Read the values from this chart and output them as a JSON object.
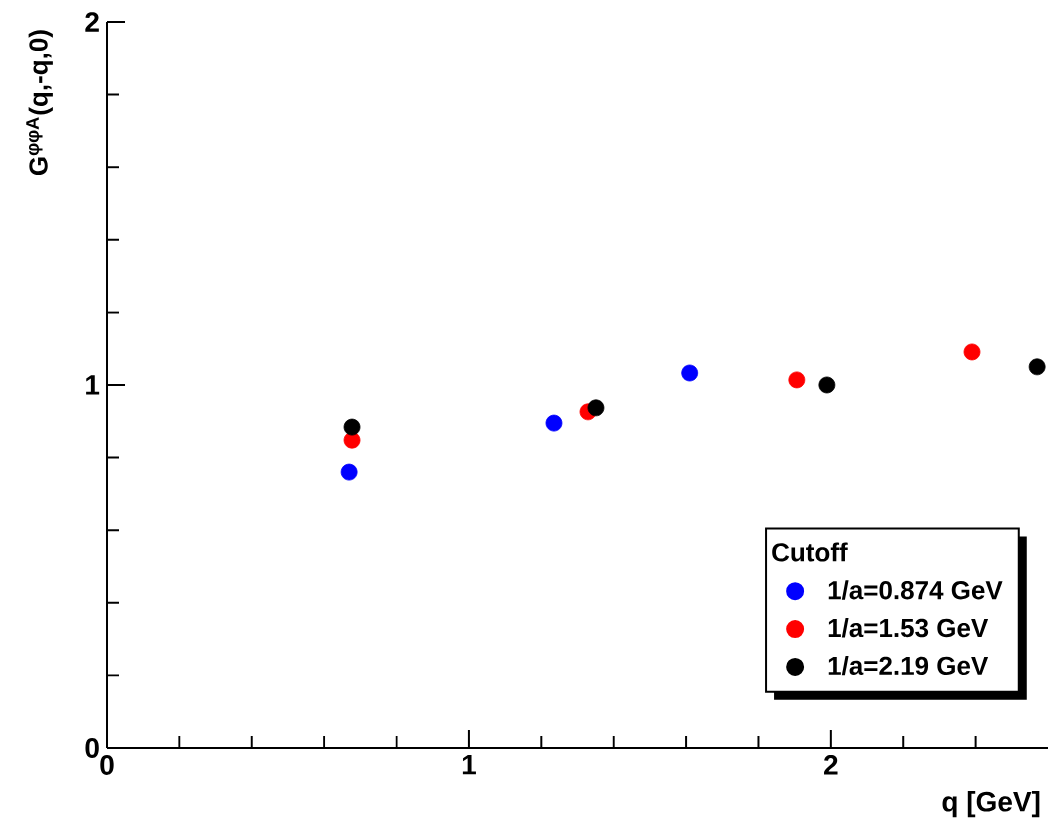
{
  "chart_data": {
    "type": "scatter",
    "xlabel": "q [GeV]",
    "ylabel": "G$^{φφA}$(q,-q,0)",
    "legend_title": "Cutoff",
    "legend": "bottom right",
    "marker": "circle",
    "xlim": [
      0,
      2.6
    ],
    "ylim": [
      0,
      2
    ],
    "xticks": [
      0,
      {
        "value": 0.2,
        "label": null
      },
      {
        "value": 0.4,
        "label": null
      },
      {
        "value": 0.6,
        "label": null
      },
      {
        "value": 0.8,
        "label": null
      },
      1,
      {
        "value": 1.2,
        "label": null
      },
      {
        "value": 1.4,
        "label": null
      },
      {
        "value": 1.6,
        "label": null
      },
      {
        "value": 1.8,
        "label": null
      },
      2,
      {
        "value": 2.2,
        "label": null
      },
      {
        "value": 2.4,
        "label": null
      }
    ],
    "yticks": [
      0,
      {
        "value": 0.2,
        "label": null
      },
      {
        "value": 0.4,
        "label": null
      },
      {
        "value": 0.6,
        "label": null
      },
      {
        "value": 0.8,
        "label": null
      },
      1,
      {
        "value": 1.2,
        "label": null
      },
      {
        "value": 1.4,
        "label": null
      },
      {
        "value": 1.6,
        "label": null
      },
      {
        "value": 1.8,
        "label": null
      },
      2
    ],
    "series": [
      {
        "name": "1/a=0.874 GeV",
        "color": "#0000ff",
        "x": [
          0.669,
          1.235,
          1.61
        ],
        "values": [
          0.76,
          0.895,
          1.033
        ]
      },
      {
        "name": "1/a=1.53 GeV",
        "color": "#ff0000",
        "x": [
          0.677,
          1.329,
          1.906,
          2.39
        ],
        "values": [
          0.848,
          0.926,
          1.014,
          1.091
        ]
      },
      {
        "name": "1/a=2.19 GeV",
        "color": "#000000",
        "x": [
          0.677,
          1.351,
          1.989,
          2.57
        ],
        "values": [
          0.884,
          0.937,
          1.0,
          1.05
        ]
      }
    ]
  }
}
